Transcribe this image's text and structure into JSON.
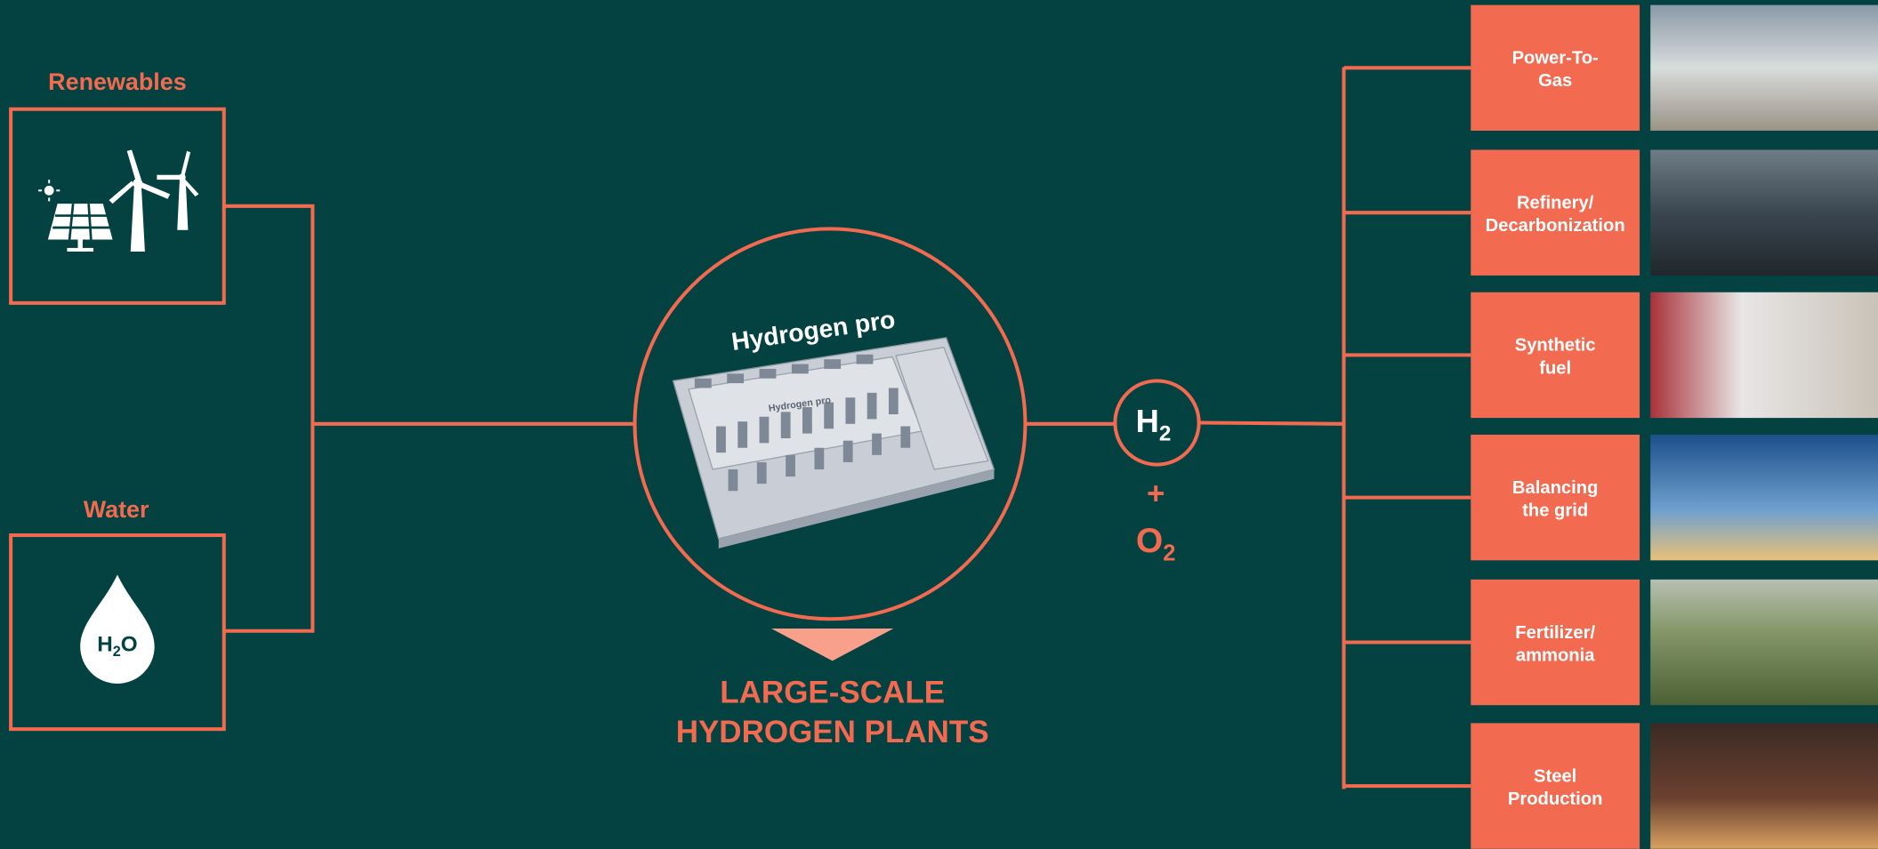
{
  "inputs": [
    {
      "label": "Renewables"
    },
    {
      "label": "Water",
      "icon_text": [
        "H",
        "2",
        "O"
      ]
    }
  ],
  "plant": {
    "logo": "Hydrogen pro",
    "floor_logo": "Hydrogen pro",
    "caption": [
      "LARGE-SCALE",
      "HYDROGEN PLANTS"
    ]
  },
  "products": {
    "hydrogen": [
      "H",
      "2"
    ],
    "plus": "+",
    "oxygen": [
      "O",
      "2"
    ]
  },
  "applications": [
    {
      "label": [
        "Power-To-",
        "Gas"
      ]
    },
    {
      "label": [
        "Refinery/",
        "Decarbonization"
      ]
    },
    {
      "label": [
        "Synthetic",
        "fuel"
      ]
    },
    {
      "label": [
        "Balancing",
        "the grid"
      ]
    },
    {
      "label": [
        "Fertilizer/",
        "ammonia"
      ]
    },
    {
      "label": [
        "Steel",
        "Production"
      ]
    }
  ]
}
